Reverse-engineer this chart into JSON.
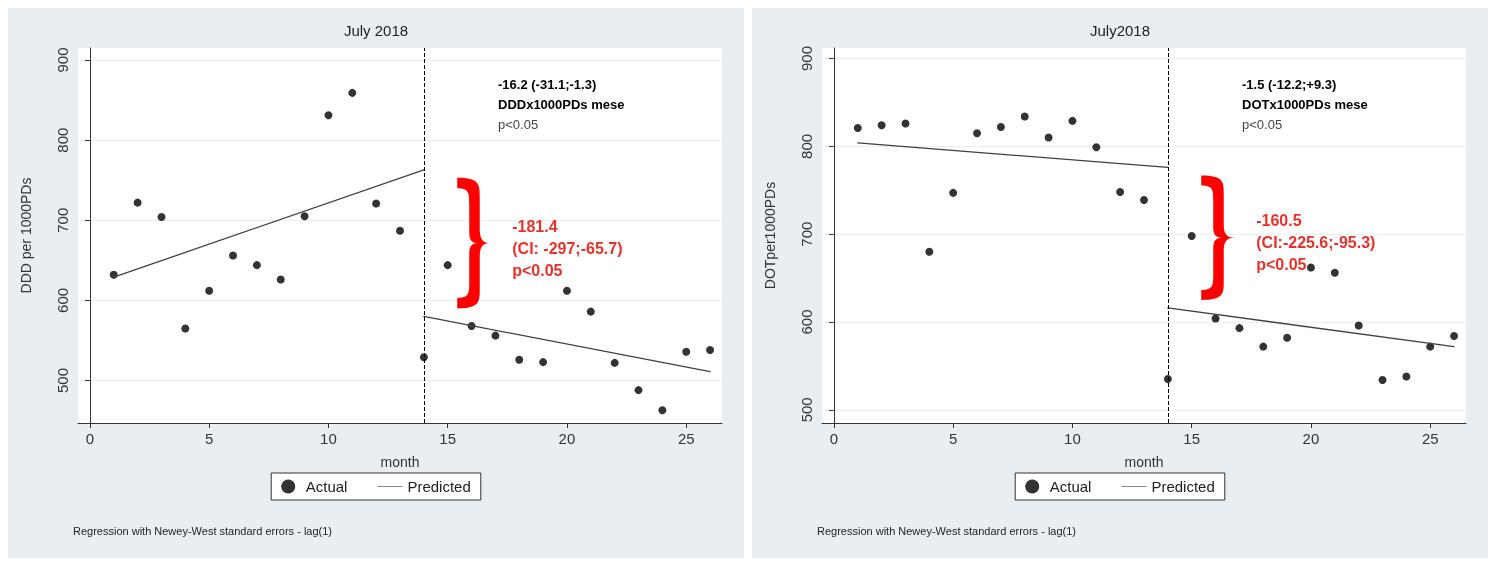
{
  "chart_data": [
    {
      "type": "scatter",
      "title": "July 2018",
      "xlabel": "month",
      "ylabel": "DDD per 1000PDs",
      "xlim": [
        -0.5,
        26.5
      ],
      "xticks": [
        0,
        5,
        10,
        15,
        20,
        25
      ],
      "ylim": [
        447,
        915
      ],
      "yticks": [
        500,
        600,
        700,
        800,
        900
      ],
      "grid": "y",
      "legend": "bottom",
      "marker": "circle",
      "series": [
        {
          "name": "Actual",
          "color": "#000000",
          "x": [
            1,
            2,
            3,
            4,
            5,
            6,
            7,
            8,
            9,
            10,
            11,
            12,
            13,
            14,
            15,
            16,
            17,
            18,
            19,
            20,
            21,
            22,
            23,
            24,
            25,
            26
          ],
          "values": [
            632,
            722,
            704,
            565,
            612,
            656,
            644,
            626,
            705,
            831,
            859,
            721,
            687,
            529,
            644,
            568,
            556,
            526,
            523,
            612,
            586,
            522,
            488,
            463,
            536,
            538
          ]
        },
        {
          "name": "Predicted",
          "type": "line",
          "color": "#404040",
          "line_style": "solid",
          "marker": "none",
          "x": [
            1,
            14
          ],
          "values": [
            629,
            763
          ]
        },
        {
          "type": "line",
          "color": "#404040",
          "line_style": "solid",
          "marker": "none",
          "x": [
            14,
            26
          ],
          "values": [
            580,
            511
          ]
        }
      ],
      "ref_lines": [
        {
          "axis": "x",
          "value": 14,
          "line_style": "dashed",
          "color": "#000000"
        }
      ],
      "annotations": [
        "-16.2 (-31.1;-1.3)",
        "DDDx1000PDs mese",
        "p<0.05",
        "-181.4\n(CI: -297;-65.7)\np<0.05",
        "Regression with Newey-West standard errors - lag(1)"
      ]
    },
    {
      "type": "scatter",
      "title": "July2018",
      "xlabel": "month",
      "ylabel": "DOTper1000PDs",
      "xlim": [
        -0.5,
        26.5
      ],
      "xticks": [
        0,
        5,
        10,
        15,
        20,
        25
      ],
      "ylim": [
        485,
        912
      ],
      "yticks": [
        500,
        600,
        700,
        800,
        900
      ],
      "grid": "y",
      "legend": "bottom",
      "marker": "circle",
      "series": [
        {
          "name": "Actual",
          "color": "#000000",
          "x": [
            1,
            2,
            3,
            4,
            5,
            6,
            7,
            8,
            9,
            10,
            11,
            12,
            13,
            14,
            15,
            16,
            17,
            18,
            19,
            20,
            21,
            22,
            23,
            24,
            25,
            26
          ],
          "values": [
            821,
            824,
            826,
            680,
            747,
            815,
            822,
            834,
            810,
            829,
            799,
            748,
            739,
            535,
            698,
            604,
            593,
            572,
            582,
            662,
            656,
            596,
            534,
            538,
            572,
            584
          ]
        },
        {
          "name": "Predicted",
          "type": "line",
          "color": "#404040",
          "line_style": "solid",
          "marker": "none",
          "x": [
            1,
            14
          ],
          "values": [
            804,
            776
          ]
        },
        {
          "type": "line",
          "color": "#404040",
          "line_style": "solid",
          "marker": "none",
          "x": [
            14,
            26
          ],
          "values": [
            616,
            572
          ]
        }
      ],
      "ref_lines": [
        {
          "axis": "x",
          "value": 14,
          "line_style": "dashed",
          "color": "#000000"
        }
      ],
      "annotations": [
        "-1.5 (-12.2;+9.3)",
        "DOTx1000PDs mese",
        "p<0.05",
        "-160.5\n(CI:-225.6;-95.3)\np<0.05",
        "Regression with Newey-West standard errors - lag(1)"
      ]
    }
  ]
}
